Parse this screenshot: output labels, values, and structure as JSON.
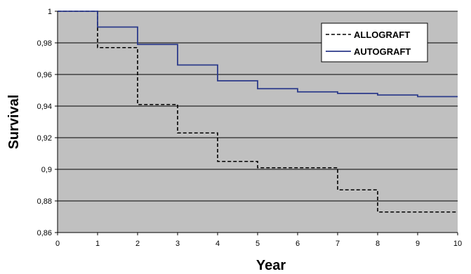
{
  "chart_data": {
    "type": "line",
    "title": "",
    "xlabel": "Year",
    "ylabel": "Survival",
    "xlim": [
      0,
      10
    ],
    "ylim": [
      0.86,
      1.0
    ],
    "x_ticks": [
      0,
      1,
      2,
      3,
      4,
      5,
      6,
      7,
      8,
      9,
      10
    ],
    "x_tick_labels": [
      "0",
      "1",
      "2",
      "3",
      "4",
      "5",
      "6",
      "7",
      "8",
      "9",
      "10"
    ],
    "y_ticks": [
      0.86,
      0.88,
      0.9,
      0.92,
      0.94,
      0.96,
      0.98,
      1.0
    ],
    "y_tick_labels": [
      "0,86",
      "0,88",
      "0,9",
      "0,92",
      "0,94",
      "0,96",
      "0,98",
      "1"
    ],
    "grid": "horizontal",
    "legend_position": "top-right",
    "step": true,
    "series": [
      {
        "name": "ALLOGRAFT",
        "style": "dashed",
        "color": "#000000",
        "x": [
          0,
          1,
          2,
          3,
          4,
          5,
          7,
          8,
          10
        ],
        "y": [
          1.0,
          0.977,
          0.941,
          0.923,
          0.905,
          0.901,
          0.887,
          0.873,
          0.873
        ]
      },
      {
        "name": "AUTOGRAFT",
        "style": "solid",
        "color": "#2b3a8a",
        "x": [
          0,
          1,
          2,
          3,
          4,
          5,
          6,
          7,
          8,
          9,
          10
        ],
        "y": [
          1.0,
          0.99,
          0.979,
          0.966,
          0.956,
          0.951,
          0.949,
          0.948,
          0.947,
          0.946,
          0.946
        ]
      }
    ],
    "colors": {
      "plot_background": "#c0c0c0",
      "grid": "#000000"
    }
  }
}
